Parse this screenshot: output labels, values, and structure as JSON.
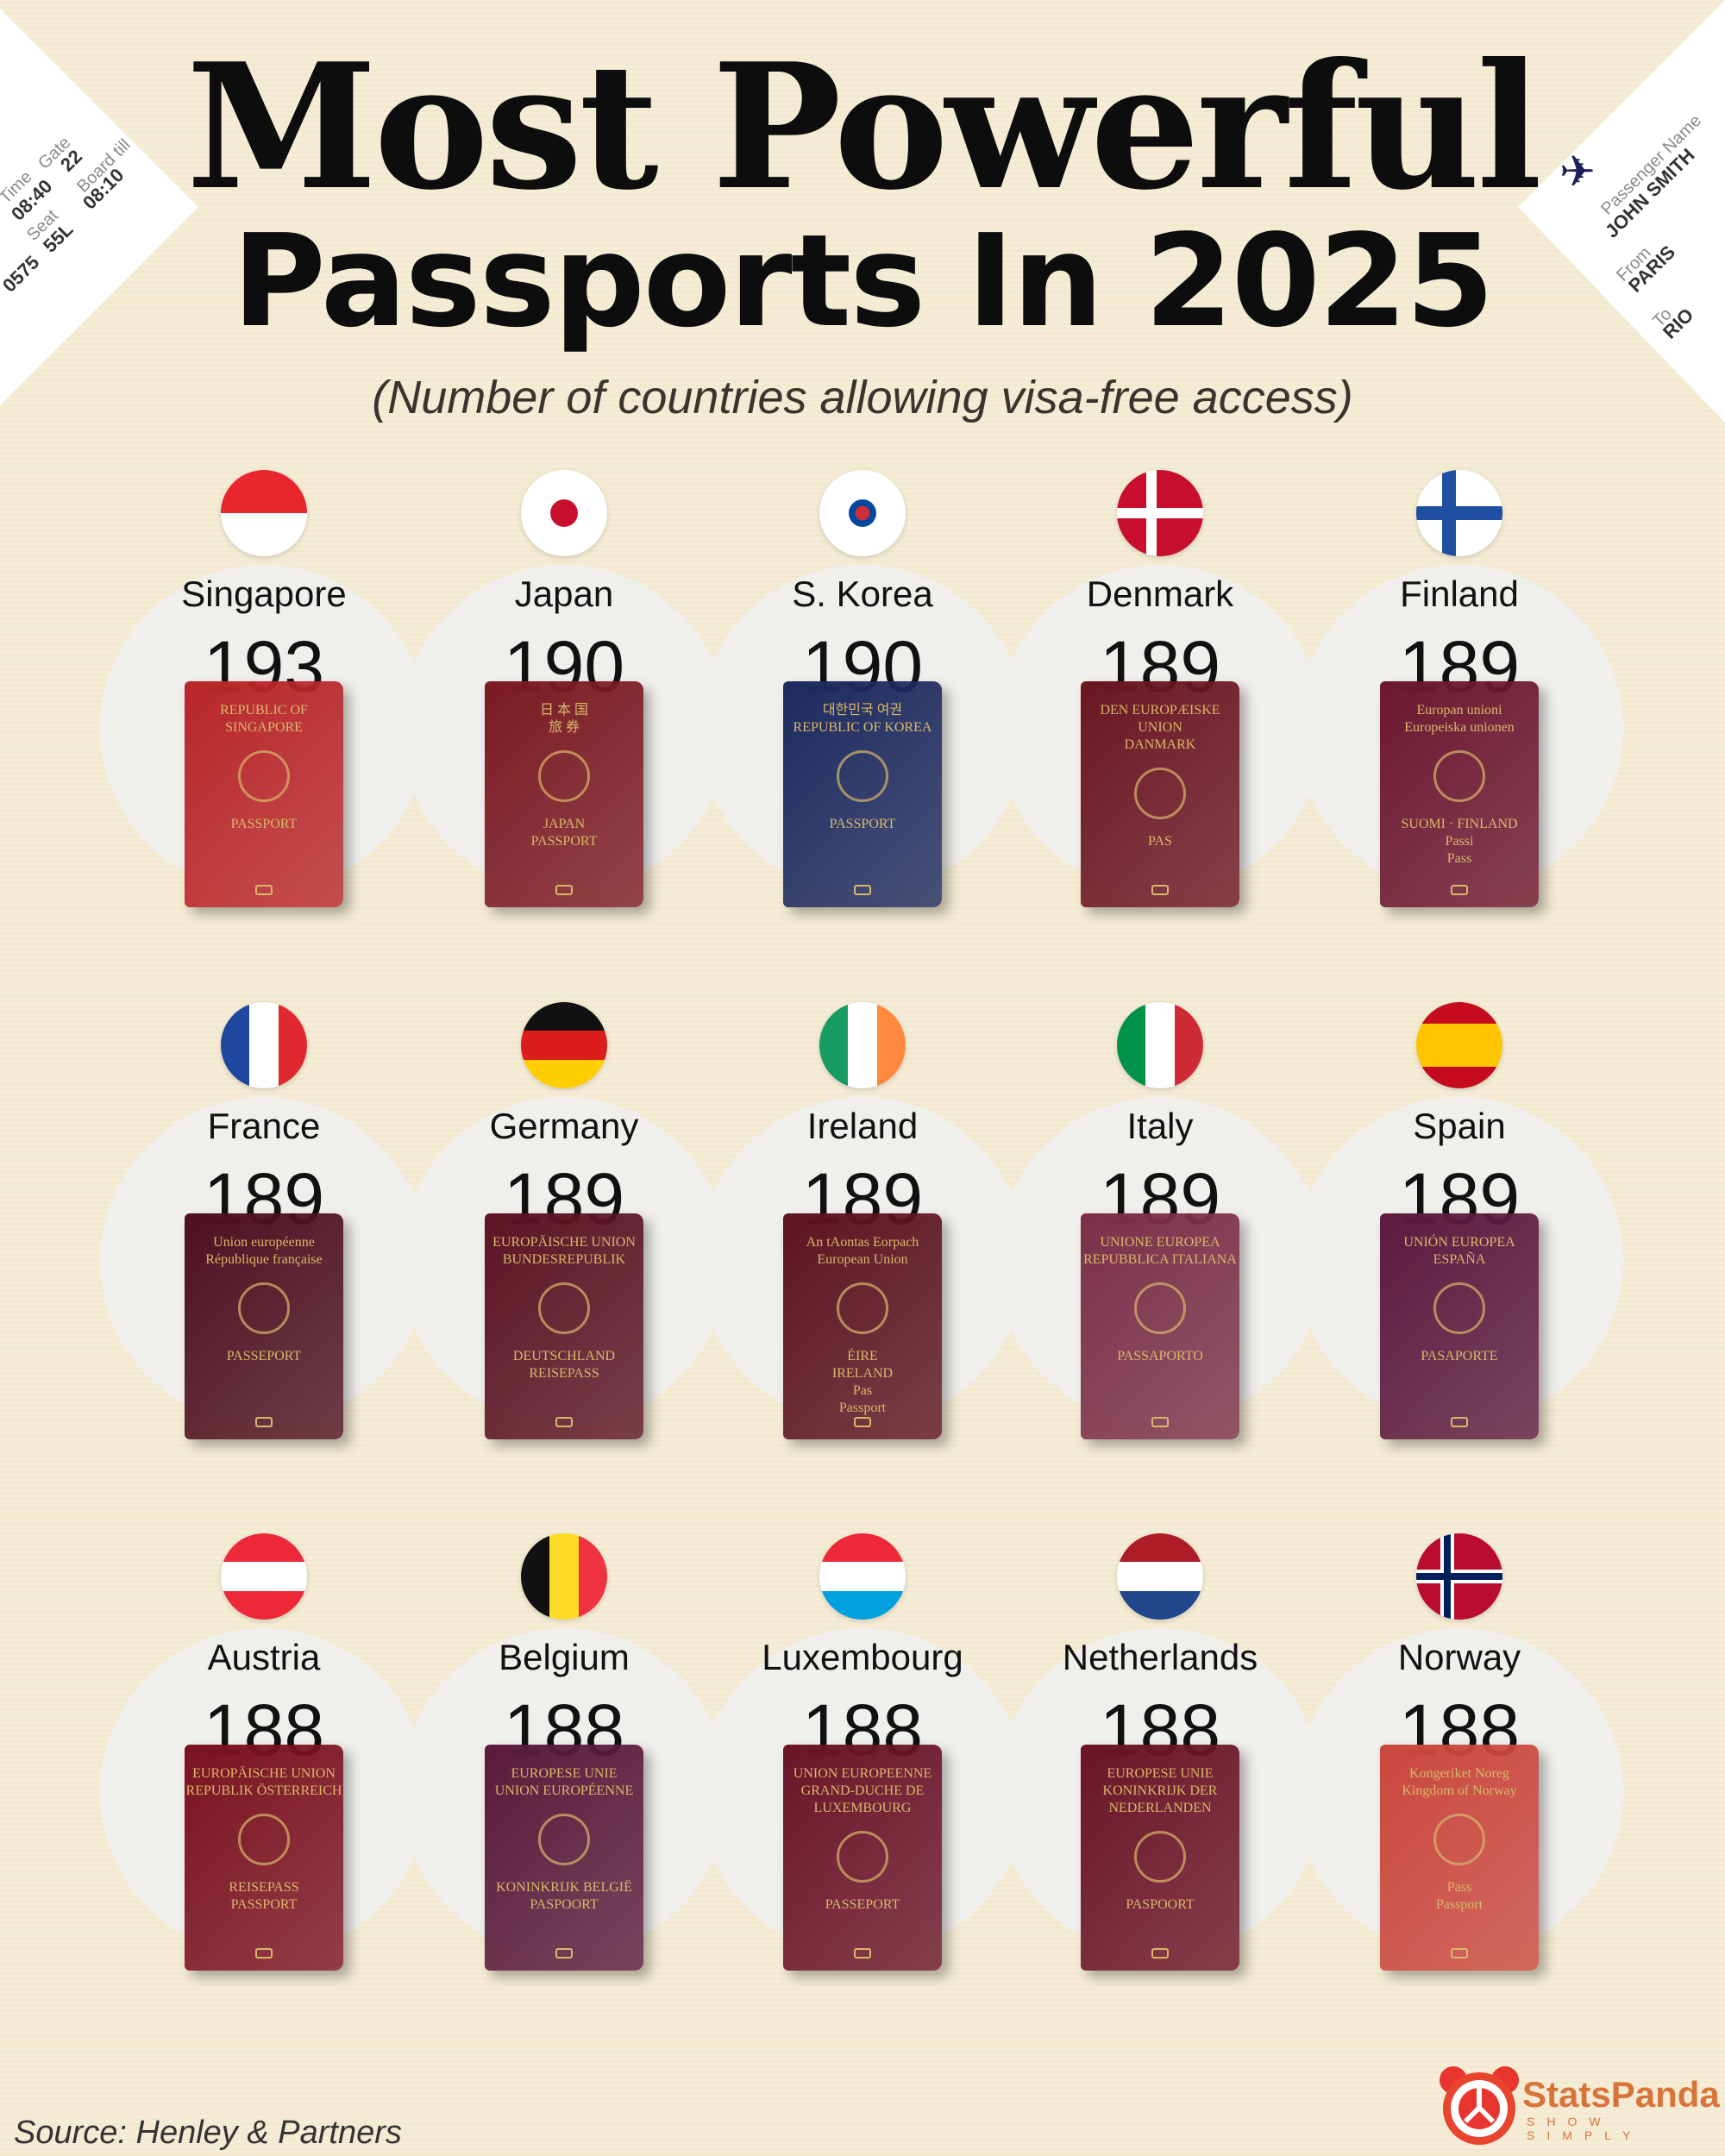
{
  "title_line1": "Most Powerful",
  "title_line2": "Passports In 2025",
  "subtitle": "(Number of countries allowing visa-free access)",
  "ticket_left": {
    "gate_label": "Gate",
    "gate": "22",
    "time_label": "Time",
    "time": "08:40",
    "board_label": "Board till",
    "board": "08:10",
    "seat_label": "Seat",
    "seat": "55L",
    "flight": "0575"
  },
  "ticket_right": {
    "passenger_label": "Passenger Name",
    "passenger": "JOHN SMITH",
    "from_label": "From",
    "from": "PARIS",
    "to_label": "To",
    "to": "RIO"
  },
  "countries": [
    {
      "name": "Singapore",
      "score": "193",
      "flag": "singapore",
      "color": "#b8262a",
      "cover": [
        "REPUBLIC OF",
        "SINGAPORE",
        "PASSPORT"
      ]
    },
    {
      "name": "Japan",
      "score": "190",
      "flag": "japan",
      "color": "#7a1a22",
      "cover": [
        "日 本 国",
        "旅 券",
        "JAPAN",
        "PASSPORT"
      ]
    },
    {
      "name": "S. Korea",
      "score": "190",
      "flag": "south-korea",
      "color": "#1d2a5e",
      "cover": [
        "대한민국 여권",
        "REPUBLIC OF KOREA",
        "PASSPORT"
      ]
    },
    {
      "name": "Denmark",
      "score": "189",
      "flag": "denmark",
      "color": "#6a1622",
      "cover": [
        "DEN EUROPÆISKE UNION",
        "DANMARK",
        "PAS"
      ]
    },
    {
      "name": "Finland",
      "score": "189",
      "flag": "finland",
      "color": "#6b1730",
      "cover": [
        "Europan unioni",
        "Europeiska unionen",
        "SUOMI · FINLAND",
        "Passi",
        "Pass"
      ]
    },
    {
      "name": "France",
      "score": "189",
      "flag": "france",
      "color": "#4e1020",
      "cover": [
        "Union européenne",
        "République française",
        "PASSEPORT"
      ]
    },
    {
      "name": "Germany",
      "score": "189",
      "flag": "germany",
      "color": "#5a1424",
      "cover": [
        "EUROPÄISCHE UNION",
        "BUNDESREPUBLIK",
        "DEUTSCHLAND",
        "REISEPASS"
      ]
    },
    {
      "name": "Ireland",
      "score": "189",
      "flag": "ireland",
      "color": "#5b1420",
      "cover": [
        "An tAontas Eorpach",
        "European Union",
        "ÉIRE",
        "IRELAND",
        "Pas",
        "Passport"
      ]
    },
    {
      "name": "Italy",
      "score": "189",
      "flag": "italy",
      "color": "#7a3048",
      "cover": [
        "UNIONE EUROPEA",
        "REPUBBLICA ITALIANA",
        "PASSAPORTO"
      ]
    },
    {
      "name": "Spain",
      "score": "189",
      "flag": "spain",
      "color": "#5c1a3e",
      "cover": [
        "UNIÓN EUROPEA",
        "ESPAÑA",
        "PASAPORTE"
      ]
    },
    {
      "name": "Austria",
      "score": "188",
      "flag": "austria",
      "color": "#7a1220",
      "cover": [
        "EUROPÄISCHE UNION",
        "REPUBLIK ÖSTERREICH",
        "REISEPASS",
        "PASSPORT"
      ]
    },
    {
      "name": "Belgium",
      "score": "188",
      "flag": "belgium",
      "color": "#5a1a3a",
      "cover": [
        "EUROPESE UNIE",
        "UNION EUROPÉENNE",
        "KONINKRIJK BELGIË",
        "PASPOORT"
      ]
    },
    {
      "name": "Luxembourg",
      "score": "188",
      "flag": "luxembourg",
      "color": "#6a1428",
      "cover": [
        "UNION EUROPEENNE",
        "GRAND-DUCHE DE LUXEMBOURG",
        "PASSEPORT"
      ]
    },
    {
      "name": "Netherlands",
      "score": "188",
      "flag": "netherlands",
      "color": "#6a1426",
      "cover": [
        "EUROPESE UNIE",
        "KONINKRIJK DER NEDERLANDEN",
        "PASPOORT"
      ]
    },
    {
      "name": "Norway",
      "score": "188",
      "flag": "norway",
      "color": "#c9473e",
      "cover": [
        "Kongeriket Noreg",
        "Kingdom of Norway",
        "Pass",
        "Passport"
      ]
    }
  ],
  "source": "Source: Henley & Partners",
  "brand": {
    "name": "StatsPanda",
    "tagline": "SHOW SIMPLY",
    "color": "#d8743a"
  }
}
